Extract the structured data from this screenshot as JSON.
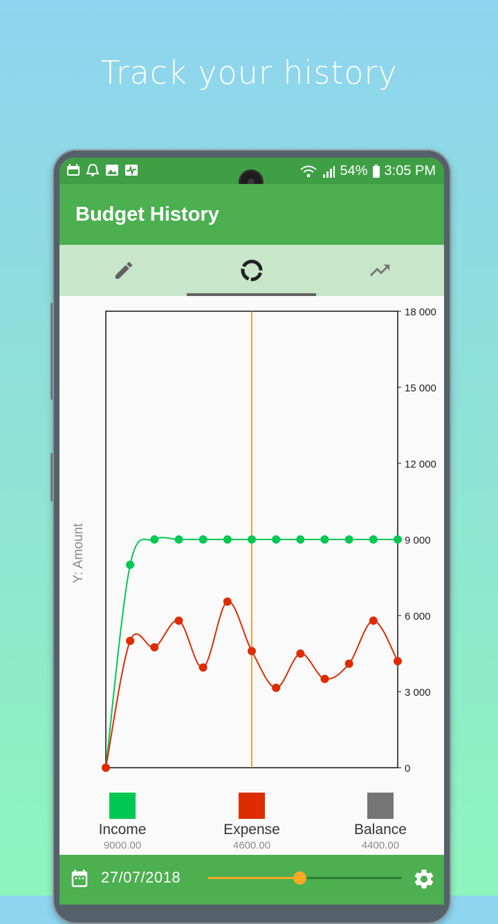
{
  "headline": "Track your history",
  "status": {
    "battery": "54%",
    "time": "3:05 PM"
  },
  "app": {
    "title": "Budget History"
  },
  "tabs": [
    {
      "name": "edit",
      "icon": "pencil-icon"
    },
    {
      "name": "overview",
      "icon": "donut-chart-icon"
    },
    {
      "name": "trend",
      "icon": "trending-up-icon"
    }
  ],
  "colors": {
    "income": "#00c853",
    "expense": "#dd2c00",
    "balance": "#757575",
    "cursor": "#f57c00",
    "accent": "#4caf50"
  },
  "chart_data": {
    "type": "line",
    "ylabel": "Y: Amount",
    "ylim": [
      0,
      18000
    ],
    "yticks": [
      "0",
      "3 000",
      "6 000",
      "9 000",
      "12 000",
      "15 000",
      "18 000"
    ],
    "ytick_values": [
      0,
      3000,
      6000,
      9000,
      12000,
      15000,
      18000
    ],
    "x": [
      0,
      1,
      2,
      3,
      4,
      5,
      6,
      7,
      8,
      9,
      10,
      11,
      12
    ],
    "cursor_x": 6,
    "series": [
      {
        "name": "Income",
        "values": [
          0,
          8000,
          9000,
          9000,
          9000,
          9000,
          9000,
          9000,
          9000,
          9000,
          9000,
          9000,
          9000
        ]
      },
      {
        "name": "Expense",
        "values": [
          0,
          5000,
          4750,
          5800,
          3950,
          6550,
          4600,
          3150,
          4500,
          3500,
          4100,
          5800,
          4200
        ]
      }
    ]
  },
  "legend": [
    {
      "name": "Income",
      "value": "9000.00"
    },
    {
      "name": "Expense",
      "value": "4600.00"
    },
    {
      "name": "Balance",
      "value": "4400.00"
    }
  ],
  "bottom": {
    "date": "27/07/2018",
    "slider_value": 0.47
  }
}
